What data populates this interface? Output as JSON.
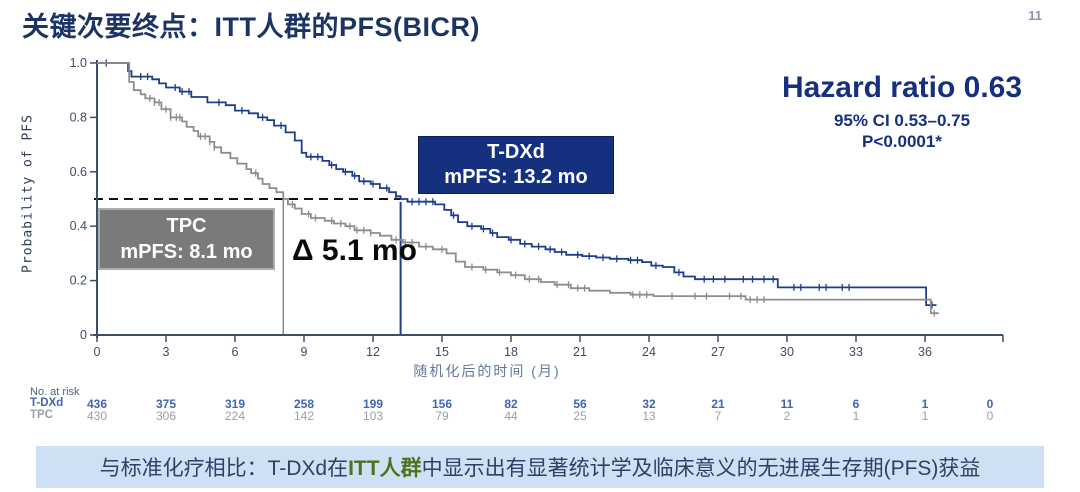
{
  "slide": {
    "title": "关键次要终点：ITT人群的PFS(BICR)",
    "page_number": "11"
  },
  "stats": {
    "hazard_ratio": "Hazard ratio 0.63",
    "confidence_interval": "95% CI 0.53–0.75",
    "p_value": "P<0.0001*"
  },
  "annotations": {
    "tdxd_box": {
      "line1": "T-DXd",
      "line2": "mPFS: 13.2 mo"
    },
    "tpc_box": {
      "line1": "TPC",
      "line2": "mPFS: 8.1 mo"
    },
    "delta": "Δ 5.1 mo"
  },
  "banner": {
    "prefix": "与标准化疗相比：T-DXd在",
    "highlight": "ITT人群",
    "suffix": "中显示出有显著统计学及临床意义的无进展生存期(PFS)获益"
  },
  "colors": {
    "title_navy": "#1b3464",
    "box_navy": "#14307e",
    "curve_blue": "#1d3c8c",
    "curve_gray": "#8d8d8d",
    "axis_text": "#3c4c68",
    "risk_blue": "#3f66b0",
    "risk_gray": "#9aa0a6",
    "banner_bg": "#cfe0f4",
    "banner_green": "#4c721d"
  },
  "chart_data": {
    "type": "line",
    "subtype": "kaplan-meier-step",
    "title": "",
    "xlabel": "随机化后的时间 (月)",
    "ylabel": "Probability of PFS",
    "xlim": [
      0,
      39.5
    ],
    "ylim": [
      0,
      1.0
    ],
    "x_ticks": [
      0,
      3,
      6,
      9,
      12,
      15,
      18,
      21,
      24,
      27,
      30,
      33,
      36
    ],
    "y_ticks": [
      0,
      0.2,
      0.4,
      0.6,
      0.8,
      1.0
    ],
    "grid": false,
    "median_reference": {
      "probability": 0.5,
      "tdxd_median_month": 13.2,
      "tpc_median_month": 8.1,
      "delta_months": 5.1
    },
    "series": [
      {
        "name": "T-DXd",
        "color": "#1d3c8c",
        "median_pfs_months": 13.2,
        "steps": [
          [
            0,
            1.0
          ],
          [
            1.2,
            1.0
          ],
          [
            1.35,
            0.97
          ],
          [
            1.5,
            0.95
          ],
          [
            2.4,
            0.94
          ],
          [
            2.7,
            0.925
          ],
          [
            3.0,
            0.91
          ],
          [
            3.6,
            0.895
          ],
          [
            4.1,
            0.875
          ],
          [
            4.8,
            0.855
          ],
          [
            5.6,
            0.845
          ],
          [
            6.0,
            0.825
          ],
          [
            6.6,
            0.815
          ],
          [
            7.0,
            0.8
          ],
          [
            7.4,
            0.79
          ],
          [
            7.7,
            0.77
          ],
          [
            8.2,
            0.745
          ],
          [
            8.6,
            0.715
          ],
          [
            8.9,
            0.67
          ],
          [
            9.1,
            0.655
          ],
          [
            9.8,
            0.64
          ],
          [
            10.1,
            0.625
          ],
          [
            10.4,
            0.61
          ],
          [
            10.7,
            0.6
          ],
          [
            11.1,
            0.585
          ],
          [
            11.4,
            0.565
          ],
          [
            11.9,
            0.555
          ],
          [
            12.3,
            0.54
          ],
          [
            12.7,
            0.525
          ],
          [
            13.0,
            0.51
          ],
          [
            13.2,
            0.5
          ],
          [
            13.5,
            0.49
          ],
          [
            14.7,
            0.48
          ],
          [
            15.1,
            0.46
          ],
          [
            15.4,
            0.44
          ],
          [
            15.7,
            0.415
          ],
          [
            16.1,
            0.4
          ],
          [
            16.7,
            0.39
          ],
          [
            17.1,
            0.375
          ],
          [
            17.4,
            0.36
          ],
          [
            17.9,
            0.35
          ],
          [
            18.4,
            0.335
          ],
          [
            18.9,
            0.325
          ],
          [
            19.5,
            0.315
          ],
          [
            19.9,
            0.305
          ],
          [
            20.4,
            0.295
          ],
          [
            21.1,
            0.29
          ],
          [
            21.7,
            0.285
          ],
          [
            22.3,
            0.28
          ],
          [
            23.1,
            0.275
          ],
          [
            23.7,
            0.268
          ],
          [
            24.1,
            0.255
          ],
          [
            24.6,
            0.25
          ],
          [
            25.1,
            0.23
          ],
          [
            25.5,
            0.215
          ],
          [
            26.0,
            0.205
          ],
          [
            29.6,
            0.175
          ],
          [
            36.0,
            0.175
          ],
          [
            36.05,
            0.11
          ],
          [
            36.5,
            0.11
          ]
        ],
        "censor_months": [
          0.4,
          1.9,
          2.2,
          3.4,
          3.7,
          4.0,
          5.3,
          6.3,
          7.2,
          8.0,
          9.3,
          9.6,
          10.2,
          10.8,
          11.2,
          11.6,
          12.0,
          12.6,
          13.0,
          13.7,
          14.0,
          14.3,
          14.6,
          15.5,
          16.3,
          16.8,
          17.2,
          18.0,
          18.6,
          19.2,
          19.7,
          20.2,
          20.9,
          21.4,
          22.0,
          22.6,
          23.2,
          23.5,
          24.3,
          25.3,
          26.4,
          26.8,
          27.3,
          28.1,
          28.5,
          29.0,
          29.4,
          30.3,
          30.6,
          31.4,
          31.7,
          32.4,
          32.7,
          36.3
        ]
      },
      {
        "name": "TPC",
        "color": "#8d8d8d",
        "median_pfs_months": 8.1,
        "steps": [
          [
            0,
            1.0
          ],
          [
            1.2,
            1.0
          ],
          [
            1.4,
            0.93
          ],
          [
            1.6,
            0.9
          ],
          [
            1.9,
            0.885
          ],
          [
            2.1,
            0.87
          ],
          [
            2.5,
            0.855
          ],
          [
            2.8,
            0.83
          ],
          [
            3.2,
            0.8
          ],
          [
            3.7,
            0.785
          ],
          [
            3.9,
            0.765
          ],
          [
            4.2,
            0.75
          ],
          [
            4.4,
            0.73
          ],
          [
            4.9,
            0.71
          ],
          [
            5.1,
            0.69
          ],
          [
            5.4,
            0.67
          ],
          [
            5.8,
            0.65
          ],
          [
            6.1,
            0.63
          ],
          [
            6.5,
            0.61
          ],
          [
            6.7,
            0.595
          ],
          [
            7.0,
            0.575
          ],
          [
            7.2,
            0.555
          ],
          [
            7.5,
            0.54
          ],
          [
            7.8,
            0.525
          ],
          [
            8.1,
            0.5
          ],
          [
            8.3,
            0.48
          ],
          [
            8.6,
            0.465
          ],
          [
            8.9,
            0.445
          ],
          [
            9.3,
            0.43
          ],
          [
            9.9,
            0.42
          ],
          [
            10.3,
            0.41
          ],
          [
            10.8,
            0.4
          ],
          [
            11.2,
            0.385
          ],
          [
            11.9,
            0.375
          ],
          [
            12.3,
            0.365
          ],
          [
            12.8,
            0.35
          ],
          [
            13.3,
            0.34
          ],
          [
            14.0,
            0.325
          ],
          [
            14.6,
            0.315
          ],
          [
            15.2,
            0.3
          ],
          [
            15.6,
            0.27
          ],
          [
            16.0,
            0.25
          ],
          [
            16.8,
            0.24
          ],
          [
            17.4,
            0.23
          ],
          [
            18.0,
            0.22
          ],
          [
            18.6,
            0.205
          ],
          [
            19.3,
            0.195
          ],
          [
            19.9,
            0.185
          ],
          [
            20.6,
            0.172
          ],
          [
            21.4,
            0.163
          ],
          [
            22.3,
            0.155
          ],
          [
            23.2,
            0.148
          ],
          [
            24.2,
            0.143
          ],
          [
            28.2,
            0.13
          ],
          [
            36.2,
            0.13
          ],
          [
            36.25,
            0.08
          ],
          [
            36.6,
            0.08
          ]
        ],
        "censor_months": [
          2.3,
          2.5,
          2.7,
          3.0,
          3.2,
          3.45,
          3.6,
          4.5,
          4.7,
          4.9,
          5.1,
          6.9,
          8.5,
          9.2,
          9.5,
          10.2,
          10.6,
          11.0,
          11.3,
          11.6,
          11.9,
          13.0,
          13.4,
          13.7,
          14.3,
          15.0,
          16.3,
          16.9,
          17.5,
          18.2,
          18.8,
          19.2,
          20.0,
          20.5,
          20.9,
          21.2,
          23.3,
          23.6,
          23.9,
          25.0,
          26.0,
          26.5,
          27.5,
          28.0,
          28.4,
          28.7,
          29.0,
          36.4
        ]
      }
    ],
    "risk_table": {
      "label": "No. at risk",
      "months": [
        0,
        3,
        6,
        9,
        12,
        15,
        18,
        21,
        24,
        27,
        30,
        33,
        36,
        39
      ],
      "rows": [
        {
          "name": "T-DXd",
          "color": "#3f66b0",
          "values": [
            436,
            375,
            319,
            258,
            199,
            156,
            82,
            56,
            32,
            21,
            11,
            6,
            1,
            0
          ]
        },
        {
          "name": "TPC",
          "color": "#9aa0a6",
          "values": [
            430,
            306,
            224,
            142,
            103,
            79,
            44,
            25,
            13,
            7,
            2,
            1,
            1,
            0
          ]
        }
      ]
    }
  }
}
